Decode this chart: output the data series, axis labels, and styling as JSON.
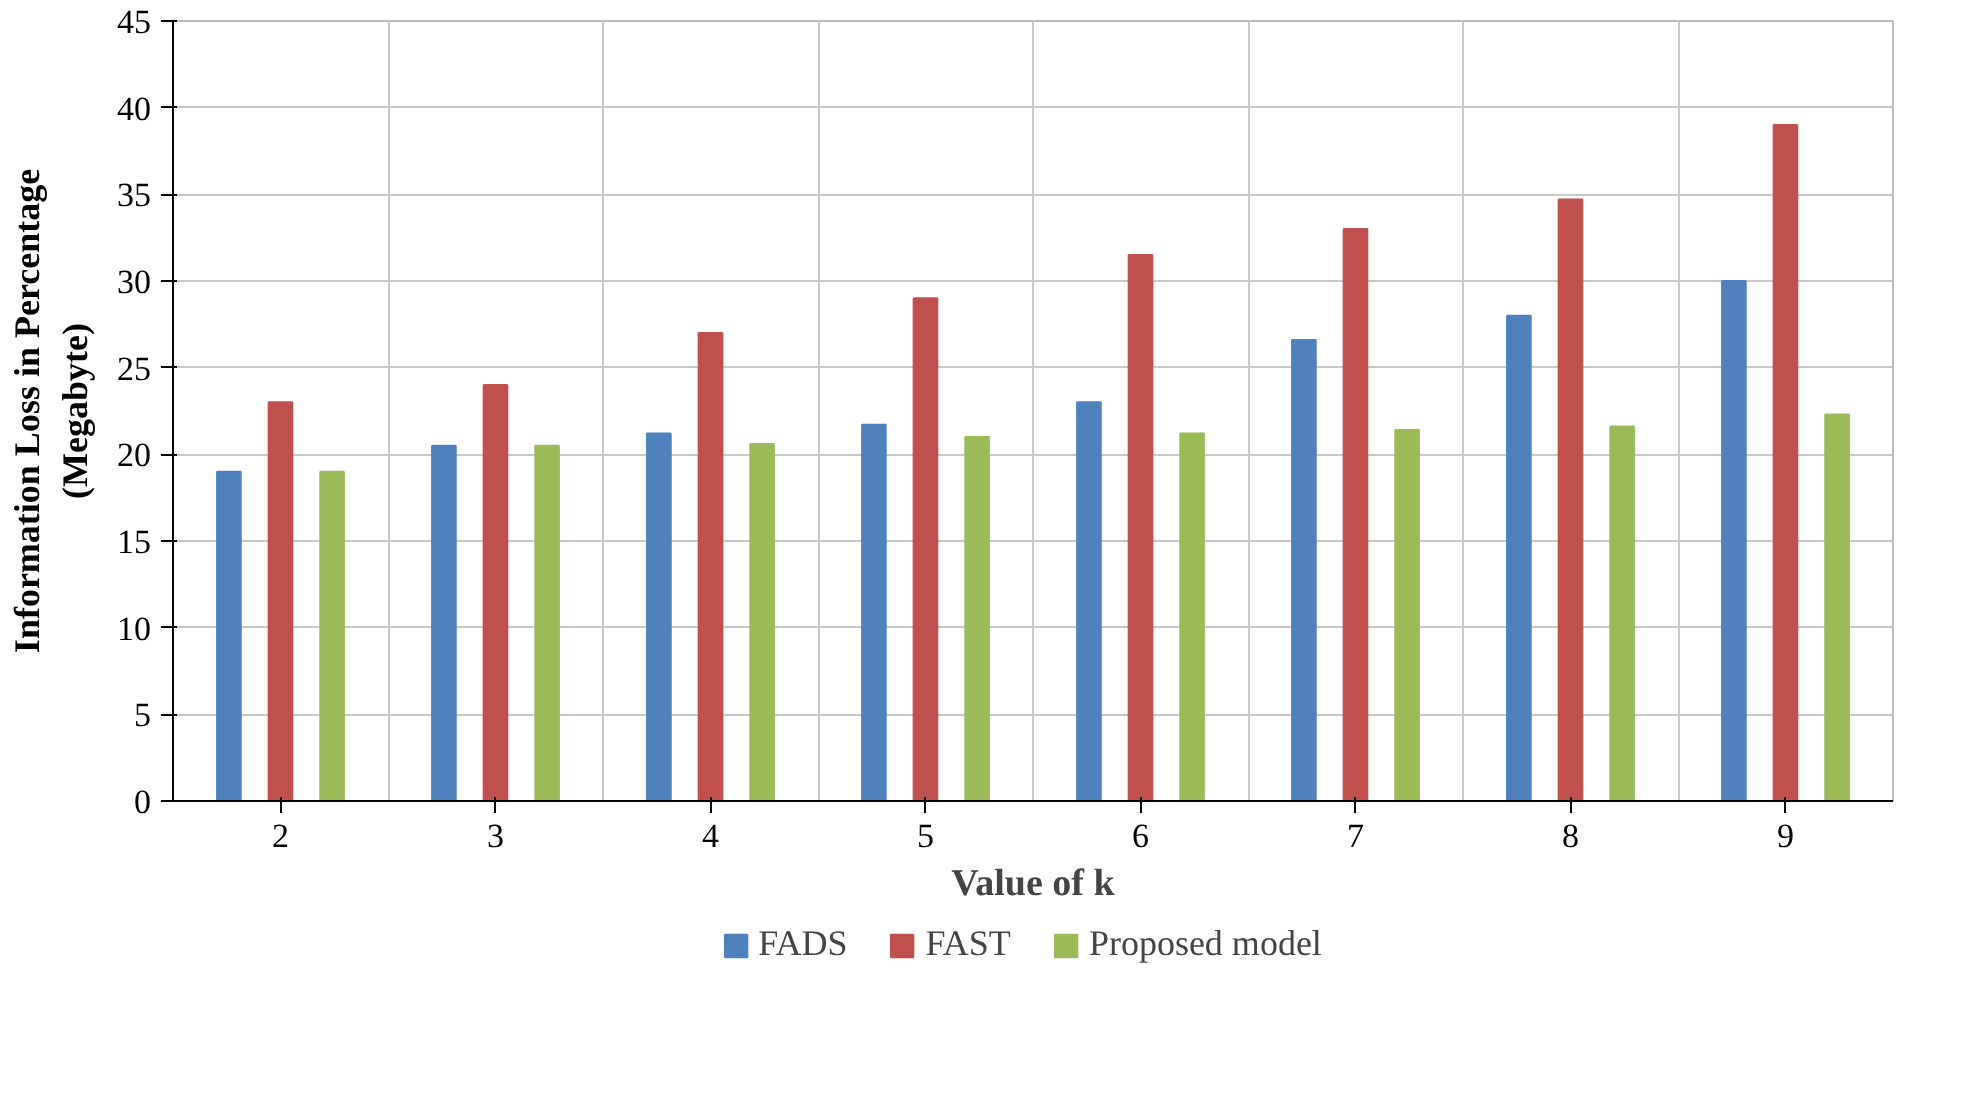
{
  "chart_data": {
    "type": "bar",
    "xlabel": "Value of k",
    "ylabel": "Information Loss in Percentage\n(Megabyte)",
    "categories": [
      "2",
      "3",
      "4",
      "5",
      "6",
      "7",
      "8",
      "9"
    ],
    "series": [
      {
        "name": "FADS",
        "color": "#4f81bd",
        "values": [
          19,
          20.5,
          21.2,
          21.7,
          23,
          26.6,
          28,
          30
        ]
      },
      {
        "name": "FAST",
        "color": "#c0504d",
        "values": [
          23,
          24,
          27,
          29,
          31.5,
          33,
          34.7,
          39
        ]
      },
      {
        "name": "Proposed model",
        "color": "#9bbb59",
        "values": [
          19,
          20.5,
          20.6,
          21,
          21.2,
          21.4,
          21.6,
          22.3
        ]
      }
    ],
    "ylim": [
      0,
      45
    ],
    "yticks": [
      0,
      5,
      10,
      15,
      20,
      25,
      30,
      35,
      40,
      45
    ],
    "grid": true,
    "legend": "bottom"
  }
}
